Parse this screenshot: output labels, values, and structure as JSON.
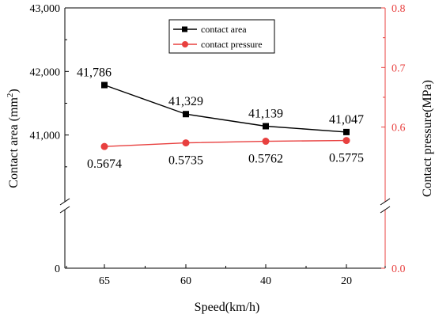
{
  "chart_data": {
    "type": "line",
    "categories": [
      "65",
      "60",
      "40",
      "20"
    ],
    "xlabel": "Speed(km/h)",
    "y_left": {
      "label": "Contact area (mm",
      "label_sup": "2",
      "label_close": ")",
      "ticks": [
        0,
        41000,
        42000,
        43000
      ],
      "tick_labels": [
        "0",
        "41,000",
        "42,000",
        "43,000"
      ],
      "break": true,
      "range_upper": [
        40000,
        43000
      ],
      "color": "#000000"
    },
    "y_right": {
      "label": "Contact pressure(MPa)",
      "ticks": [
        0.0,
        0.6,
        0.7,
        0.8
      ],
      "tick_labels": [
        "0.0",
        "0.6",
        "0.7",
        "0.8"
      ],
      "break": true,
      "range_upper": [
        0.48,
        0.8
      ],
      "color": "#e8403f"
    },
    "series": [
      {
        "name": "contact area",
        "axis": "left",
        "marker": "square",
        "color": "#000000",
        "values": [
          41786,
          41329,
          41139,
          41047
        ],
        "labels": [
          "41,786",
          "41,329",
          "41,139",
          "41,047"
        ]
      },
      {
        "name": "contact pressure",
        "axis": "right",
        "marker": "circle",
        "color": "#e8403f",
        "values": [
          0.5674,
          0.5735,
          0.5762,
          0.5775
        ],
        "labels": [
          "0.5674",
          "0.5735",
          "0.5762",
          "0.5775"
        ]
      }
    ],
    "legend": "top-center"
  }
}
